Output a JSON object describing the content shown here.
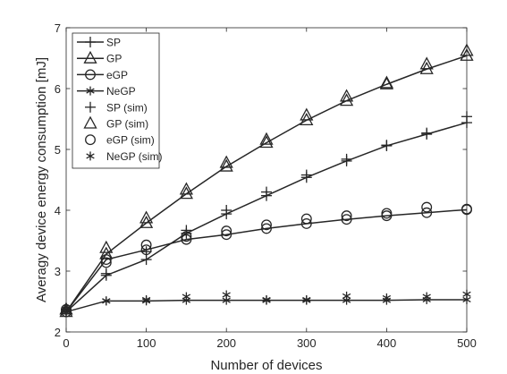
{
  "chart_data": {
    "type": "line",
    "title": "",
    "xlabel": "Number of devices",
    "ylabel": "Averagy device energy consumption [mJ]",
    "xlim": [
      0,
      500
    ],
    "ylim": [
      2,
      7
    ],
    "xticks": [
      0,
      100,
      200,
      300,
      400,
      500
    ],
    "yticks": [
      2,
      3,
      4,
      5,
      6,
      7
    ],
    "grid": false,
    "box": true,
    "legend_position": "top-left",
    "x": [
      0,
      50,
      100,
      150,
      200,
      250,
      300,
      350,
      400,
      450,
      500
    ],
    "series": [
      {
        "name": "SP",
        "kind": "analysis",
        "marker": "plus",
        "values": [
          2.33,
          2.93,
          3.19,
          3.62,
          3.94,
          4.24,
          4.54,
          4.81,
          5.06,
          5.25,
          5.44
        ]
      },
      {
        "name": "GP",
        "kind": "analysis",
        "marker": "triangle",
        "values": [
          2.33,
          3.28,
          3.79,
          4.27,
          4.72,
          5.11,
          5.48,
          5.8,
          6.07,
          6.32,
          6.54
        ]
      },
      {
        "name": "eGP",
        "kind": "analysis",
        "marker": "circle",
        "values": [
          2.33,
          3.19,
          3.35,
          3.52,
          3.6,
          3.7,
          3.78,
          3.85,
          3.91,
          3.96,
          4.01
        ]
      },
      {
        "name": "NeGP",
        "kind": "analysis",
        "marker": "asterisk",
        "values": [
          2.33,
          2.51,
          2.51,
          2.52,
          2.52,
          2.52,
          2.52,
          2.52,
          2.52,
          2.53,
          2.53
        ]
      },
      {
        "name": "SP (sim)",
        "kind": "sim",
        "marker": "plus",
        "values": [
          2.37,
          2.96,
          3.32,
          3.67,
          4.0,
          4.3,
          4.58,
          4.84,
          5.07,
          5.27,
          5.54
        ]
      },
      {
        "name": "GP (sim)",
        "kind": "sim",
        "marker": "triangle",
        "values": [
          2.37,
          3.38,
          3.87,
          4.34,
          4.78,
          5.16,
          5.56,
          5.87,
          6.09,
          6.4,
          6.62
        ]
      },
      {
        "name": "eGP (sim)",
        "kind": "sim",
        "marker": "circle",
        "values": [
          2.37,
          3.14,
          3.43,
          3.57,
          3.66,
          3.76,
          3.86,
          3.91,
          3.95,
          4.05,
          4.02
        ]
      },
      {
        "name": "NeGP (sim)",
        "kind": "sim",
        "marker": "asterisk",
        "values": [
          2.37,
          2.51,
          2.53,
          2.58,
          2.61,
          2.53,
          2.53,
          2.59,
          2.56,
          2.58,
          2.62
        ]
      }
    ]
  }
}
